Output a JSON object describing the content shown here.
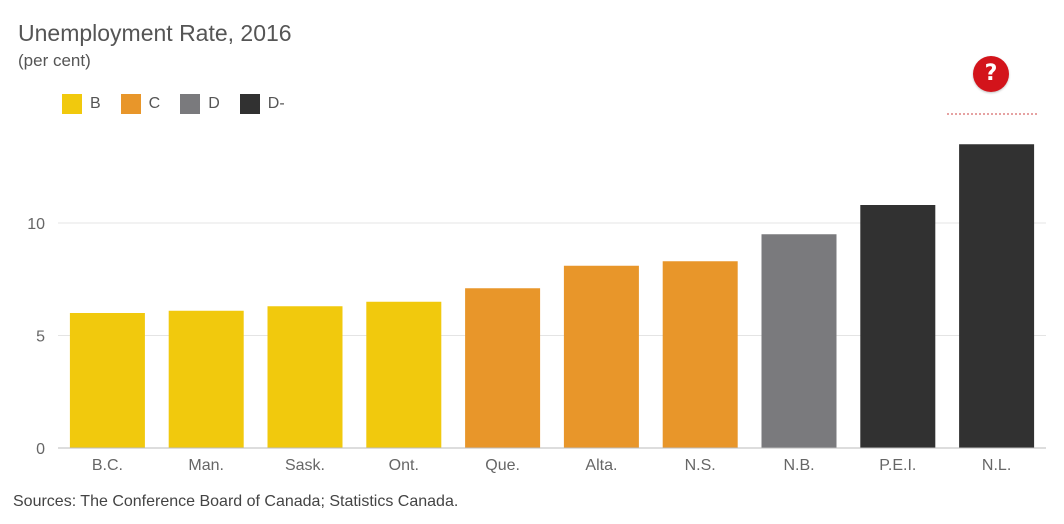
{
  "title": "Unemployment Rate, 2016",
  "subtitle": "(per cent)",
  "source": "Sources: The Conference Board of Canada; Statistics Canada.",
  "help_icon": "question-circle-icon",
  "legend": [
    {
      "label": "B",
      "color": "#f1c90d"
    },
    {
      "label": "C",
      "color": "#e8962a"
    },
    {
      "label": "D",
      "color": "#7a7a7d"
    },
    {
      "label": "D-",
      "color": "#313131"
    }
  ],
  "chart_data": {
    "type": "bar",
    "title": "Unemployment Rate, 2016",
    "subtitle": "(per cent)",
    "xlabel": "",
    "ylabel": "",
    "categories": [
      "B.C.",
      "Man.",
      "Sask.",
      "Ont.",
      "Que.",
      "Alta.",
      "N.S.",
      "N.B.",
      "P.E.I.",
      "N.L."
    ],
    "values": [
      6.0,
      6.1,
      6.3,
      6.5,
      7.1,
      8.1,
      8.3,
      9.5,
      10.8,
      13.5
    ],
    "grades": [
      "B",
      "B",
      "B",
      "B",
      "C",
      "C",
      "C",
      "D",
      "D-",
      "D-"
    ],
    "ylim": [
      0,
      14
    ],
    "yticks": [
      0,
      5,
      10
    ],
    "grid": true,
    "legend_position": "top-left"
  }
}
